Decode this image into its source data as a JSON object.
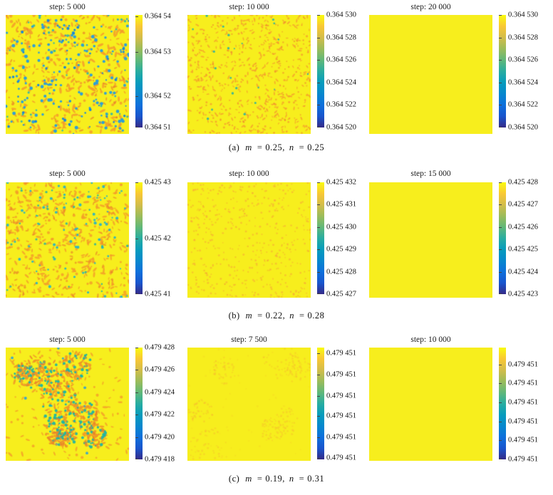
{
  "figure_background": "#ffffff",
  "chart_data": {
    "type": "heatmap",
    "description": "3x3 grid of pattern-formation simulation snapshots, each heatmap paired with a parula colorbar",
    "colormap_top_to_bottom": [
      "#f9fb0e",
      "#f9c834",
      "#d3bd4a",
      "#9cbc5a",
      "#61b879",
      "#29ada0",
      "#079cbc",
      "#0788cd",
      "#0e70dc",
      "#1955cd",
      "#352a87"
    ],
    "rows": [
      {
        "params": {
          "m": 0.25,
          "n": 0.25
        },
        "caption": {
          "index": "(a)",
          "m_var": "m",
          "m_eq": "=",
          "m_val": "0.25,",
          "n_var": "n",
          "n_eq": "=",
          "n_val": "0.25"
        },
        "panels": [
          {
            "title": "step: 5 000",
            "colorbar": {
              "ticks": [
                "0.364 54",
                "0.364 53",
                "0.364 52",
                "0.364 51"
              ],
              "fracs": [
                0.01,
                0.33,
                0.72,
                1.0
              ]
            },
            "pattern": {
              "style": "dense blue spots with orange speckles on yellow",
              "seed": 11,
              "bg": "#f7ee1d",
              "layers": [
                {
                  "kind": "speckle",
                  "color": "#f49b2b",
                  "count": 320,
                  "size": [
                    1,
                    2.4
                  ],
                  "alpha": 0.85,
                  "elong": true
                },
                {
                  "kind": "speckle",
                  "color": "#e87f2a",
                  "count": 120,
                  "size": [
                    1,
                    1.9
                  ],
                  "alpha": 0.7,
                  "elong": true
                },
                {
                  "kind": "speckle",
                  "color": "#2d9fd8",
                  "count": 150,
                  "size": [
                    1.2,
                    2.5
                  ],
                  "alpha": 1
                },
                {
                  "kind": "speckle",
                  "color": "#1b86d8",
                  "count": 55,
                  "size": [
                    1,
                    2.1
                  ],
                  "alpha": 1
                },
                {
                  "kind": "speckle",
                  "color": "#2ab4ae",
                  "count": 40,
                  "size": [
                    1,
                    1.9
                  ],
                  "alpha": 0.9
                }
              ]
            }
          },
          {
            "title": "step: 10 000",
            "colorbar": {
              "ticks": [
                "0.364 530",
                "0.364 528",
                "0.364 526",
                "0.364 524",
                "0.364 522",
                "0.364 520"
              ],
              "fracs": [
                0,
                0.2,
                0.4,
                0.6,
                0.8,
                1
              ]
            },
            "pattern": {
              "style": "fine faint orange dots with sparse teal dots on yellow",
              "seed": 22,
              "bg": "#f7ee1d",
              "layers": [
                {
                  "kind": "speckle",
                  "color": "#f59d2e",
                  "count": 500,
                  "size": [
                    0.8,
                    1.6
                  ],
                  "alpha": 0.8,
                  "elong": true
                },
                {
                  "kind": "speckle",
                  "color": "#ee8030",
                  "count": 150,
                  "size": [
                    0.8,
                    1.4
                  ],
                  "alpha": 0.6
                },
                {
                  "kind": "speckle",
                  "color": "#2ab0a4",
                  "count": 22,
                  "size": [
                    1,
                    1.8
                  ],
                  "alpha": 0.9
                }
              ]
            }
          },
          {
            "title": "step: 20 000",
            "colorbar": {
              "ticks": [
                "0.364 530",
                "0.364 528",
                "0.364 526",
                "0.364 524",
                "0.364 522",
                "0.364 520"
              ],
              "fracs": [
                0,
                0.2,
                0.4,
                0.6,
                0.8,
                1
              ]
            },
            "pattern": {
              "style": "uniform yellow",
              "seed": 33,
              "bg": "#f7ee1d",
              "layers": []
            }
          }
        ]
      },
      {
        "params": {
          "m": 0.22,
          "n": 0.28
        },
        "caption": {
          "index": "(b)",
          "m_var": "m",
          "m_eq": "=",
          "m_val": "0.22,",
          "n_var": "n",
          "n_eq": "=",
          "n_val": "0.28"
        },
        "panels": [
          {
            "title": "step: 5 000",
            "colorbar": {
              "ticks": [
                "0.425 43",
                "0.425 42",
                "0.425 41"
              ],
              "fracs": [
                0,
                0.5,
                1
              ]
            },
            "pattern": {
              "style": "orange dashes with scattered teal dots on yellow",
              "seed": 44,
              "bg": "#f7ee1d",
              "layers": [
                {
                  "kind": "speckle",
                  "color": "#f49b2b",
                  "count": 400,
                  "size": [
                    1,
                    2.3
                  ],
                  "alpha": 0.8,
                  "elong": true
                },
                {
                  "kind": "speckle",
                  "color": "#e87f2a",
                  "count": 130,
                  "size": [
                    1,
                    1.8
                  ],
                  "alpha": 0.65,
                  "elong": true
                },
                {
                  "kind": "speckle",
                  "color": "#29b3c4",
                  "count": 80,
                  "size": [
                    1,
                    2.1
                  ],
                  "alpha": 0.95
                },
                {
                  "kind": "speckle",
                  "color": "#2ab4a0",
                  "count": 30,
                  "size": [
                    1,
                    1.8
                  ],
                  "alpha": 0.9
                }
              ]
            }
          },
          {
            "title": "step: 10 000",
            "colorbar": {
              "ticks": [
                "0.425 432",
                "0.425 431",
                "0.425 430",
                "0.425 429",
                "0.425 428",
                "0.425 427"
              ],
              "fracs": [
                0,
                0.2,
                0.4,
                0.6,
                0.8,
                1
              ]
            },
            "pattern": {
              "style": "very faint small orange dots on yellow",
              "seed": 55,
              "bg": "#f7ee1d",
              "layers": [
                {
                  "kind": "speckle",
                  "color": "#f7a23a",
                  "count": 380,
                  "size": [
                    0.8,
                    1.5
                  ],
                  "alpha": 0.55
                },
                {
                  "kind": "speckle",
                  "color": "#f28a38",
                  "count": 80,
                  "size": [
                    0.8,
                    1.3
                  ],
                  "alpha": 0.45
                }
              ]
            }
          },
          {
            "title": "step: 15 000",
            "colorbar": {
              "ticks": [
                "0.425 428",
                "0.425 427",
                "0.425 426",
                "0.425 425",
                "0.425 424",
                "0.425 423"
              ],
              "fracs": [
                0,
                0.2,
                0.4,
                0.6,
                0.8,
                1
              ]
            },
            "pattern": {
              "style": "uniform yellow",
              "seed": 66,
              "bg": "#f7ee1d",
              "layers": []
            }
          }
        ]
      },
      {
        "params": {
          "m": 0.19,
          "n": 0.31
        },
        "caption": {
          "index": "(c)",
          "m_var": "m",
          "m_eq": "=",
          "m_val": "0.19,",
          "n_var": "n",
          "n_eq": "=",
          "n_val": "0.31"
        },
        "panels": [
          {
            "title": "step: 5 000",
            "colorbar": {
              "ticks": [
                "0.479 428",
                "0.479 426",
                "0.479 424",
                "0.479 422",
                "0.479 420",
                "0.479 418"
              ],
              "fracs": [
                0,
                0.2,
                0.4,
                0.6,
                0.8,
                1
              ]
            },
            "pattern": {
              "style": "clustered patches of teal and orange spots on yellow",
              "seed": 77,
              "bg": "#f7ee1d",
              "layers": [
                {
                  "kind": "speckle",
                  "color": "#f49b2b",
                  "count": 150,
                  "size": [
                    1,
                    2.1
                  ],
                  "alpha": 0.8,
                  "elong": true
                },
                {
                  "kind": "speckle",
                  "color": "#2d9fd8",
                  "count": 12,
                  "size": [
                    1.2,
                    2.2
                  ],
                  "alpha": 0.9
                },
                {
                  "kind": "clusters",
                  "centers": 9,
                  "radius": [
                    14,
                    30
                  ],
                  "sub": [
                    {
                      "color": "#f09828",
                      "count": 40,
                      "size": [
                        1,
                        2.3
                      ],
                      "alpha": 0.9,
                      "elong": true
                    },
                    {
                      "color": "#1fb4a4",
                      "count": 26,
                      "size": [
                        1,
                        2.3
                      ],
                      "alpha": 0.95
                    },
                    {
                      "color": "#e87f2a",
                      "count": 15,
                      "size": [
                        1,
                        1.9
                      ],
                      "alpha": 0.8,
                      "elong": true
                    }
                  ]
                }
              ]
            }
          },
          {
            "title": "step: 7 500",
            "colorbar": {
              "ticks": [
                "0.479 451",
                "0.479 451",
                "0.479 451",
                "0.479 451",
                "0.479 451",
                "0.479 451"
              ],
              "fracs": [
                0.05,
                0.24,
                0.43,
                0.61,
                0.8,
                0.99
              ]
            },
            "pattern": {
              "style": "nearly uniform yellow with very faint orange patches",
              "seed": 88,
              "bg": "#f7ee1d",
              "layers": [
                {
                  "kind": "clusters",
                  "centers": 7,
                  "radius": [
                    16,
                    30
                  ],
                  "sub": [
                    {
                      "color": "#f7a23a",
                      "count": 45,
                      "size": [
                        0.8,
                        1.6
                      ],
                      "alpha": 0.28
                    }
                  ]
                },
                {
                  "kind": "speckle",
                  "color": "#f7a23a",
                  "count": 60,
                  "size": [
                    0.8,
                    1.3
                  ],
                  "alpha": 0.15
                }
              ]
            }
          },
          {
            "title": "step: 10 000",
            "colorbar": {
              "ticks": [
                "0.479 451",
                "0.479 451",
                "0.479 451",
                "0.479 451",
                "0.479 451",
                "0.479 451"
              ],
              "fracs": [
                0.15,
                0.32,
                0.49,
                0.66,
                0.83,
                1.0
              ]
            },
            "pattern": {
              "style": "uniform yellow",
              "seed": 99,
              "bg": "#f7ee1d",
              "layers": []
            }
          }
        ]
      }
    ]
  }
}
